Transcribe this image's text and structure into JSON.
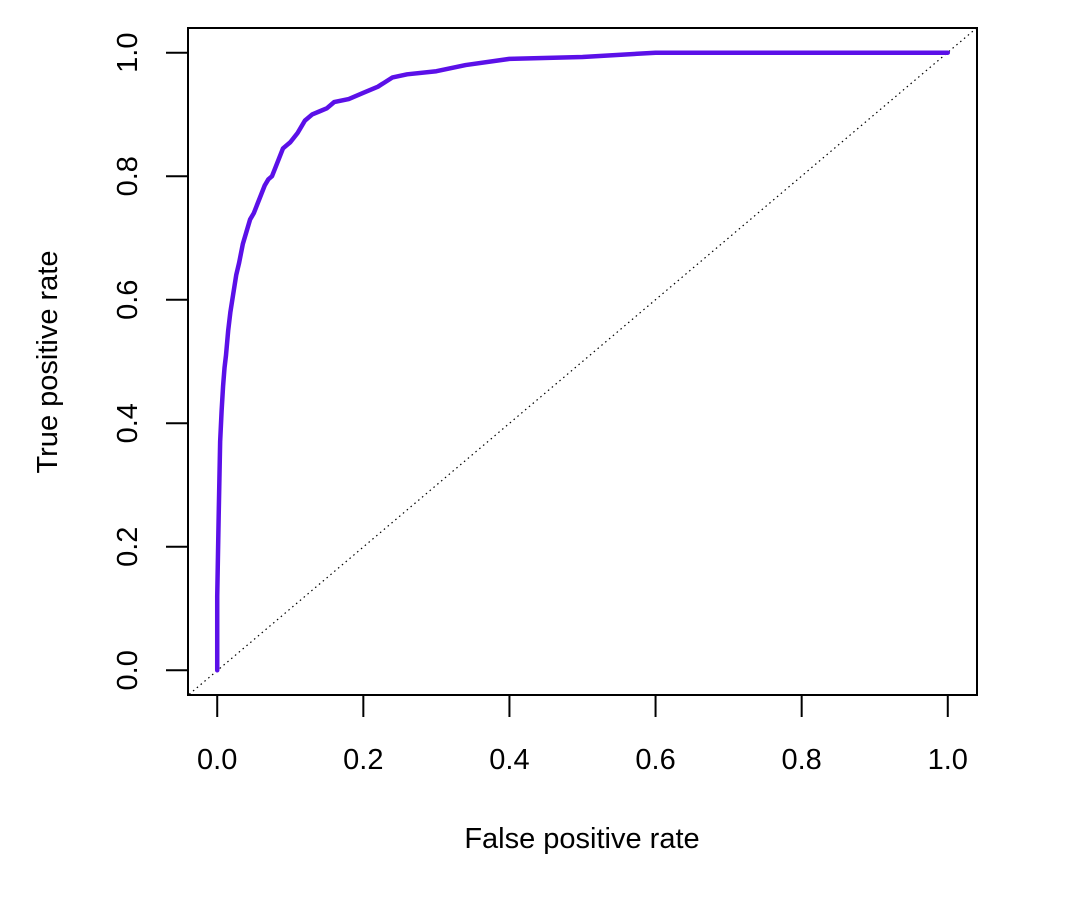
{
  "chart_data": {
    "type": "line",
    "title": "",
    "xlabel": "False positive rate",
    "ylabel": "True positive rate",
    "xlim": [
      -0.04,
      1.04
    ],
    "ylim": [
      -0.04,
      1.04
    ],
    "x_ticks": [
      0.0,
      0.2,
      0.4,
      0.6,
      0.8,
      1.0
    ],
    "y_ticks": [
      0.0,
      0.2,
      0.4,
      0.6,
      0.8,
      1.0
    ],
    "x_tick_labels": [
      "0.0",
      "0.2",
      "0.4",
      "0.6",
      "0.8",
      "1.0"
    ],
    "y_tick_labels": [
      "0.0",
      "0.2",
      "0.4",
      "0.6",
      "0.8",
      "1.0"
    ],
    "grid": false,
    "legend": "none",
    "series": [
      {
        "color": "#5b10e8",
        "x": [
          0,
          0,
          0.002,
          0.003,
          0.004,
          0.006,
          0.008,
          0.01,
          0.012,
          0.015,
          0.018,
          0.022,
          0.026,
          0.03,
          0.035,
          0.04,
          0.045,
          0.05,
          0.055,
          0.06,
          0.065,
          0.07,
          0.075,
          0.08,
          0.085,
          0.09,
          0.095,
          0.1,
          0.11,
          0.12,
          0.13,
          0.14,
          0.15,
          0.16,
          0.18,
          0.2,
          0.22,
          0.24,
          0.26,
          0.3,
          0.34,
          0.4,
          0.5,
          0.6,
          0.8,
          1.0
        ],
        "y": [
          0,
          0.12,
          0.25,
          0.31,
          0.37,
          0.42,
          0.46,
          0.49,
          0.51,
          0.55,
          0.58,
          0.61,
          0.64,
          0.66,
          0.69,
          0.71,
          0.73,
          0.74,
          0.755,
          0.77,
          0.785,
          0.795,
          0.8,
          0.815,
          0.83,
          0.845,
          0.85,
          0.855,
          0.87,
          0.89,
          0.9,
          0.905,
          0.91,
          0.92,
          0.925,
          0.935,
          0.945,
          0.96,
          0.965,
          0.97,
          0.98,
          0.99,
          0.993,
          1.0,
          1.0,
          1.0
        ]
      }
    ],
    "reference_line": {
      "x": [
        0,
        1
      ],
      "y": [
        0,
        1
      ],
      "style": "dotted"
    }
  }
}
